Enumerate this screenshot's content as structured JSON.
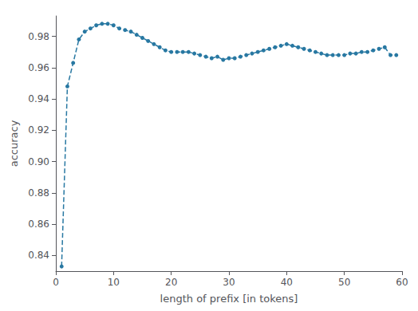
{
  "chart_data": {
    "type": "line",
    "xlabel": "length of prefix [in tokens]",
    "ylabel": "accuracy",
    "xlim": [
      0,
      60
    ],
    "ylim": [
      0.83,
      0.993
    ],
    "xticks": [
      0,
      10,
      20,
      30,
      40,
      50,
      60
    ],
    "yticks": [
      0.84,
      0.86,
      0.88,
      {
        "value": 0.9,
        "label": "0.90"
      },
      0.92,
      0.94,
      0.96,
      0.98
    ],
    "color": "#2878a2",
    "marker": "circle",
    "line_style": "dashed",
    "grid": false,
    "x": [
      1,
      2,
      3,
      4,
      5,
      6,
      7,
      8,
      9,
      10,
      11,
      12,
      13,
      14,
      15,
      16,
      17,
      18,
      19,
      20,
      21,
      22,
      23,
      24,
      25,
      26,
      27,
      28,
      29,
      30,
      31,
      32,
      33,
      34,
      35,
      36,
      37,
      38,
      39,
      40,
      41,
      42,
      43,
      44,
      45,
      46,
      47,
      48,
      49,
      50,
      51,
      52,
      53,
      54,
      55,
      56,
      57,
      58,
      59
    ],
    "values": [
      0.833,
      0.948,
      0.963,
      0.978,
      0.983,
      0.985,
      0.987,
      0.988,
      0.988,
      0.987,
      0.985,
      0.984,
      0.983,
      0.981,
      0.979,
      0.977,
      0.975,
      0.973,
      0.971,
      0.97,
      0.97,
      0.97,
      0.97,
      0.969,
      0.968,
      0.967,
      0.966,
      0.967,
      0.965,
      0.966,
      0.966,
      0.967,
      0.968,
      0.969,
      0.97,
      0.971,
      0.972,
      0.973,
      0.974,
      0.975,
      0.974,
      0.973,
      0.972,
      0.971,
      0.97,
      0.969,
      0.968,
      0.968,
      0.968,
      0.968,
      0.969,
      0.969,
      0.97,
      0.97,
      0.971,
      0.972,
      0.973,
      0.968,
      0.968
    ]
  }
}
